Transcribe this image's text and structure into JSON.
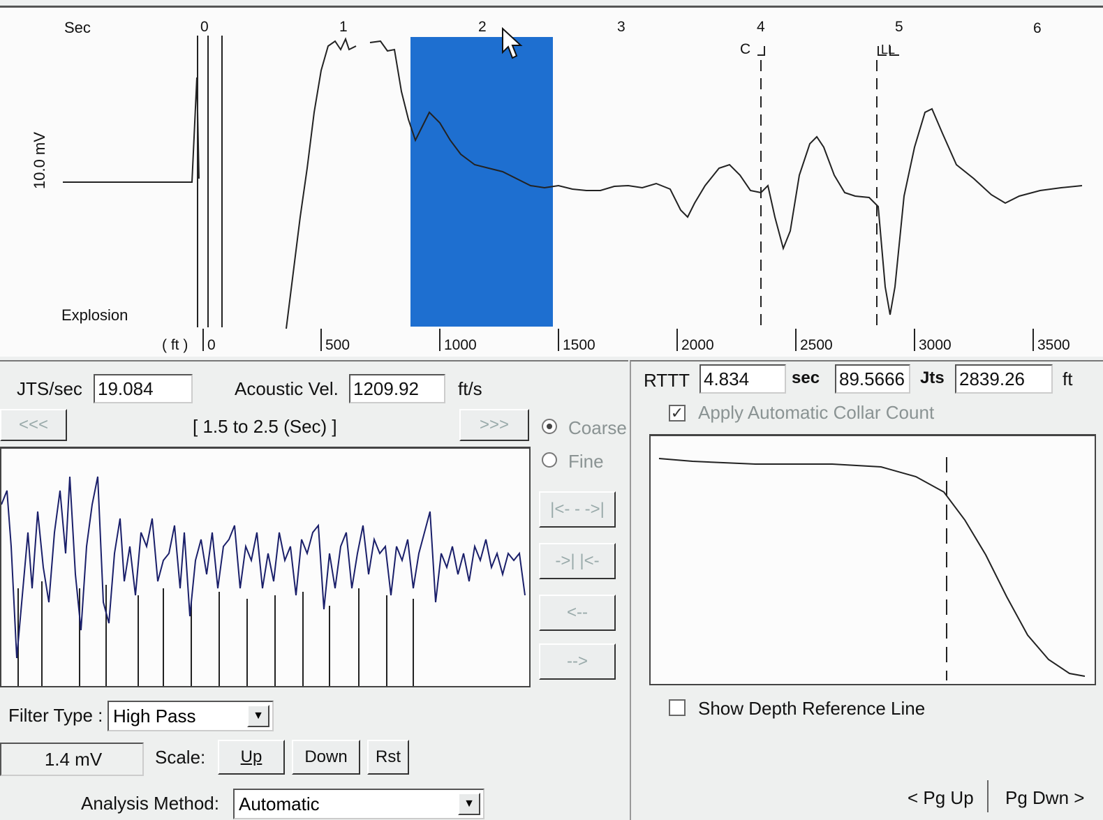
{
  "top_chart": {
    "sec_label": "Sec",
    "y_label": "10.0 mV",
    "explosion_label": "Explosion",
    "ft_label": "( ft )",
    "sec_ticks": [
      "0",
      "1",
      "2",
      "3",
      "4",
      "5",
      "6"
    ],
    "ft_ticks": [
      "0",
      "500",
      "1000",
      "1500",
      "2000",
      "2500",
      "3000",
      "3500"
    ],
    "marker_c": "C",
    "marker_ll": "LL",
    "selection_color": "#1e6fd0"
  },
  "controls": {
    "jts_sec_label": "JTS/sec",
    "jts_sec_value": "19.084",
    "acoustic_vel_label": "Acoustic Vel.",
    "acoustic_vel_value": "1209.92",
    "acoustic_vel_unit": "ft/s",
    "prev_button": "<<<",
    "range_text": "[ 1.5  to  2.5 (Sec) ]",
    "next_button": ">>>",
    "coarse_label": "Coarse",
    "fine_label": "Fine",
    "resolution_selected": "Coarse",
    "btn_expand": "|<- - ->|",
    "btn_contract": "->|  |<-",
    "btn_left": "<--",
    "btn_right": "-->"
  },
  "filter": {
    "label": "Filter Type :",
    "value": "High Pass",
    "mv_value": "1.4  mV",
    "scale_label": "Scale:",
    "up": "Up",
    "down": "Down",
    "reset": "Rst"
  },
  "analysis": {
    "label": "Analysis Method:",
    "value": "Automatic"
  },
  "results": {
    "rttt_label": "RTTT",
    "rttt_value": "4.834",
    "sec_unit": "sec",
    "jts_value": "89.5666",
    "jts_unit": "Jts",
    "ft_value": "2839.26",
    "ft_unit": "ft",
    "apply_collar_label": "Apply Automatic Collar Count",
    "apply_collar_checked": true,
    "show_depth_label": "Show Depth Reference Line",
    "show_depth_checked": false
  },
  "paging": {
    "pg_up": "< Pg Up",
    "pg_down": "Pg Dwn >"
  }
}
